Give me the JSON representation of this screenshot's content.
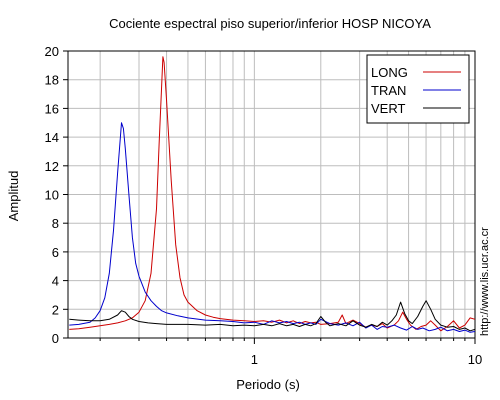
{
  "chart_data": {
    "type": "line",
    "title": "Cociente espectral piso superior/inferior  HOSP NICOYA",
    "xlabel": "Periodo (s)",
    "ylabel": "Amplitud",
    "x_scale": "log",
    "xlim": [
      0.143,
      10
    ],
    "ylim": [
      0,
      20
    ],
    "x_ticks": [
      1,
      10
    ],
    "y_ticks": [
      0,
      2,
      4,
      6,
      8,
      10,
      12,
      14,
      16,
      18,
      20
    ],
    "grid": true,
    "legend_position": "top-right",
    "watermark": "http://www.lis.ucr.ac.cr",
    "series": [
      {
        "name": "LONG",
        "color": "#cc0000",
        "points": [
          [
            0.145,
            0.6
          ],
          [
            0.16,
            0.65
          ],
          [
            0.18,
            0.75
          ],
          [
            0.2,
            0.85
          ],
          [
            0.22,
            0.95
          ],
          [
            0.24,
            1.05
          ],
          [
            0.26,
            1.2
          ],
          [
            0.28,
            1.4
          ],
          [
            0.3,
            1.8
          ],
          [
            0.32,
            2.6
          ],
          [
            0.34,
            4.5
          ],
          [
            0.36,
            9.0
          ],
          [
            0.37,
            13.5
          ],
          [
            0.38,
            17.5
          ],
          [
            0.385,
            19.6
          ],
          [
            0.39,
            19.2
          ],
          [
            0.4,
            16.5
          ],
          [
            0.42,
            11.0
          ],
          [
            0.44,
            6.5
          ],
          [
            0.46,
            4.2
          ],
          [
            0.48,
            3.0
          ],
          [
            0.5,
            2.5
          ],
          [
            0.55,
            1.9
          ],
          [
            0.6,
            1.6
          ],
          [
            0.65,
            1.45
          ],
          [
            0.7,
            1.35
          ],
          [
            0.8,
            1.25
          ],
          [
            0.9,
            1.2
          ],
          [
            1.0,
            1.15
          ],
          [
            1.1,
            1.2
          ],
          [
            1.2,
            1.1
          ],
          [
            1.3,
            1.25
          ],
          [
            1.4,
            1.05
          ],
          [
            1.5,
            1.2
          ],
          [
            1.6,
            1.0
          ],
          [
            1.7,
            1.15
          ],
          [
            1.8,
            1.05
          ],
          [
            1.9,
            1.1
          ],
          [
            2.0,
            0.95
          ],
          [
            2.2,
            1.0
          ],
          [
            2.4,
            1.1
          ],
          [
            2.5,
            1.6
          ],
          [
            2.6,
            1.0
          ],
          [
            2.8,
            1.25
          ],
          [
            3.0,
            1.0
          ],
          [
            3.2,
            0.75
          ],
          [
            3.4,
            0.9
          ],
          [
            3.6,
            0.8
          ],
          [
            3.8,
            1.0
          ],
          [
            4.0,
            0.7
          ],
          [
            4.3,
            0.9
          ],
          [
            4.5,
            1.2
          ],
          [
            4.7,
            1.8
          ],
          [
            4.9,
            1.3
          ],
          [
            5.1,
            0.9
          ],
          [
            5.4,
            0.6
          ],
          [
            5.7,
            0.8
          ],
          [
            6.0,
            0.9
          ],
          [
            6.3,
            1.2
          ],
          [
            6.6,
            0.9
          ],
          [
            7.0,
            0.5
          ],
          [
            7.5,
            0.8
          ],
          [
            8.0,
            1.2
          ],
          [
            8.5,
            0.7
          ],
          [
            9.0,
            0.9
          ],
          [
            9.5,
            1.4
          ],
          [
            10.0,
            1.3
          ]
        ]
      },
      {
        "name": "TRAN",
        "color": "#0000cc",
        "points": [
          [
            0.145,
            0.9
          ],
          [
            0.16,
            0.95
          ],
          [
            0.18,
            1.1
          ],
          [
            0.19,
            1.4
          ],
          [
            0.2,
            1.9
          ],
          [
            0.21,
            2.8
          ],
          [
            0.22,
            4.5
          ],
          [
            0.23,
            7.5
          ],
          [
            0.24,
            11.5
          ],
          [
            0.25,
            15.0
          ],
          [
            0.255,
            14.6
          ],
          [
            0.26,
            13.2
          ],
          [
            0.27,
            10.0
          ],
          [
            0.28,
            7.0
          ],
          [
            0.29,
            5.2
          ],
          [
            0.3,
            4.3
          ],
          [
            0.32,
            3.2
          ],
          [
            0.34,
            2.6
          ],
          [
            0.36,
            2.2
          ],
          [
            0.38,
            1.9
          ],
          [
            0.4,
            1.75
          ],
          [
            0.45,
            1.55
          ],
          [
            0.5,
            1.4
          ],
          [
            0.6,
            1.25
          ],
          [
            0.7,
            1.2
          ],
          [
            0.8,
            1.15
          ],
          [
            0.9,
            1.05
          ],
          [
            1.0,
            1.1
          ],
          [
            1.1,
            0.95
          ],
          [
            1.2,
            1.2
          ],
          [
            1.3,
            1.05
          ],
          [
            1.4,
            1.15
          ],
          [
            1.5,
            1.0
          ],
          [
            1.6,
            1.1
          ],
          [
            1.7,
            0.95
          ],
          [
            1.8,
            1.05
          ],
          [
            1.9,
            0.95
          ],
          [
            2.0,
            1.3
          ],
          [
            2.2,
            1.0
          ],
          [
            2.4,
            0.9
          ],
          [
            2.6,
            1.05
          ],
          [
            2.8,
            0.85
          ],
          [
            3.0,
            1.1
          ],
          [
            3.2,
            0.7
          ],
          [
            3.4,
            0.9
          ],
          [
            3.6,
            0.6
          ],
          [
            3.8,
            0.8
          ],
          [
            4.0,
            0.75
          ],
          [
            4.3,
            0.9
          ],
          [
            4.6,
            0.7
          ],
          [
            4.9,
            0.55
          ],
          [
            5.2,
            0.8
          ],
          [
            5.5,
            0.6
          ],
          [
            5.8,
            0.7
          ],
          [
            6.2,
            0.5
          ],
          [
            6.6,
            0.6
          ],
          [
            7.0,
            0.75
          ],
          [
            7.5,
            0.5
          ],
          [
            8.0,
            0.6
          ],
          [
            8.5,
            0.45
          ],
          [
            9.0,
            0.55
          ],
          [
            9.5,
            0.4
          ],
          [
            10.0,
            0.45
          ]
        ]
      },
      {
        "name": "VERT",
        "color": "#000000",
        "points": [
          [
            0.145,
            1.3
          ],
          [
            0.16,
            1.25
          ],
          [
            0.18,
            1.2
          ],
          [
            0.2,
            1.2
          ],
          [
            0.22,
            1.3
          ],
          [
            0.24,
            1.6
          ],
          [
            0.25,
            1.9
          ],
          [
            0.26,
            1.8
          ],
          [
            0.27,
            1.5
          ],
          [
            0.28,
            1.3
          ],
          [
            0.3,
            1.15
          ],
          [
            0.33,
            1.05
          ],
          [
            0.36,
            1.0
          ],
          [
            0.4,
            0.95
          ],
          [
            0.45,
            0.95
          ],
          [
            0.5,
            0.95
          ],
          [
            0.6,
            0.9
          ],
          [
            0.7,
            0.95
          ],
          [
            0.8,
            0.85
          ],
          [
            0.9,
            0.9
          ],
          [
            1.0,
            0.85
          ],
          [
            1.1,
            0.95
          ],
          [
            1.2,
            0.85
          ],
          [
            1.3,
            1.0
          ],
          [
            1.4,
            0.85
          ],
          [
            1.5,
            0.95
          ],
          [
            1.6,
            0.8
          ],
          [
            1.7,
            0.95
          ],
          [
            1.8,
            0.85
          ],
          [
            1.9,
            1.0
          ],
          [
            2.0,
            1.5
          ],
          [
            2.1,
            1.1
          ],
          [
            2.2,
            0.85
          ],
          [
            2.4,
            1.0
          ],
          [
            2.6,
            0.85
          ],
          [
            2.8,
            1.2
          ],
          [
            3.0,
            0.9
          ],
          [
            3.2,
            0.75
          ],
          [
            3.4,
            0.95
          ],
          [
            3.6,
            0.8
          ],
          [
            3.8,
            1.1
          ],
          [
            4.0,
            0.9
          ],
          [
            4.2,
            1.2
          ],
          [
            4.4,
            1.6
          ],
          [
            4.6,
            2.5
          ],
          [
            4.8,
            1.7
          ],
          [
            5.0,
            1.2
          ],
          [
            5.2,
            1.0
          ],
          [
            5.5,
            1.5
          ],
          [
            5.8,
            2.2
          ],
          [
            6.0,
            2.6
          ],
          [
            6.3,
            2.0
          ],
          [
            6.6,
            1.3
          ],
          [
            7.0,
            0.9
          ],
          [
            7.5,
            0.75
          ],
          [
            8.0,
            0.8
          ],
          [
            8.5,
            0.6
          ],
          [
            9.0,
            0.7
          ],
          [
            9.5,
            0.5
          ],
          [
            10.0,
            0.6
          ]
        ]
      }
    ]
  }
}
